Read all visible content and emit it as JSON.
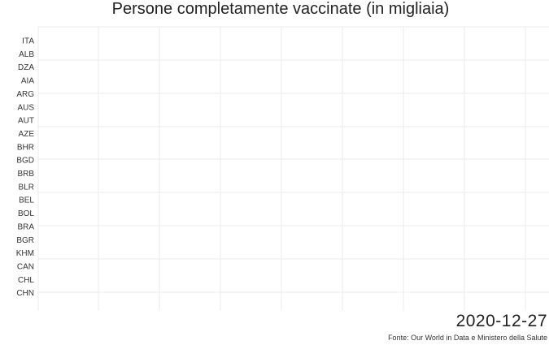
{
  "chart_data": {
    "type": "bar",
    "orientation": "horizontal",
    "title": "Persone completamente vaccinate (in migliaia)",
    "categories": [
      "ITA",
      "ALB",
      "DZA",
      "AIA",
      "ARG",
      "AUS",
      "AUT",
      "AZE",
      "BHR",
      "BGD",
      "BRB",
      "BLR",
      "BEL",
      "BOL",
      "BRA",
      "BGR",
      "KHM",
      "CAN",
      "CHL",
      "CHN"
    ],
    "values": [
      0,
      0,
      0,
      0,
      0,
      0,
      0,
      0,
      0,
      0,
      0,
      0,
      0,
      0,
      0,
      0,
      0,
      0,
      0,
      0
    ],
    "grid": true,
    "bar_color": "#1f5fa8"
  },
  "date_label": "2020-12-27",
  "source_label": "Fonte: Our World in Data e Ministero della Salute"
}
